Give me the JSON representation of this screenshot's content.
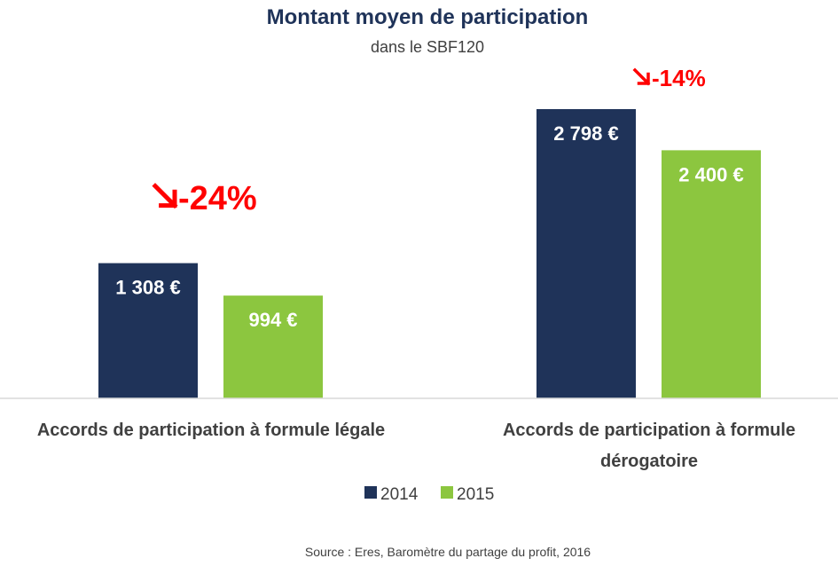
{
  "chart_data": {
    "type": "bar",
    "title": "Montant moyen de participation",
    "subtitle": "dans le SBF120",
    "categories": [
      [
        "Accords de participation à formule légale"
      ],
      [
        "Accords de participation à formule",
        "dérogatoire"
      ]
    ],
    "series": [
      {
        "name": "2014",
        "values": [
          1308,
          2798
        ],
        "labels": [
          "1 308 €",
          "2 798 €"
        ],
        "color": "#1f3359"
      },
      {
        "name": "2015",
        "values": [
          994,
          2400
        ],
        "labels": [
          "994 €",
          "2 400 €"
        ],
        "color": "#8cc63f"
      }
    ],
    "annotations": [
      {
        "category": 0,
        "text": "-24%",
        "color": "#ff0000"
      },
      {
        "category": 1,
        "text": "-14%",
        "color": "#ff0000"
      }
    ],
    "ylim": [
      0,
      2800
    ],
    "legend": "bottom",
    "grid": false
  },
  "source": "Source : Eres, Baromètre du partage du profit, 2016",
  "colors": {
    "title": "#1f3359",
    "text": "#404040",
    "axis": "#d9d9d9",
    "change": "#ff0000"
  }
}
